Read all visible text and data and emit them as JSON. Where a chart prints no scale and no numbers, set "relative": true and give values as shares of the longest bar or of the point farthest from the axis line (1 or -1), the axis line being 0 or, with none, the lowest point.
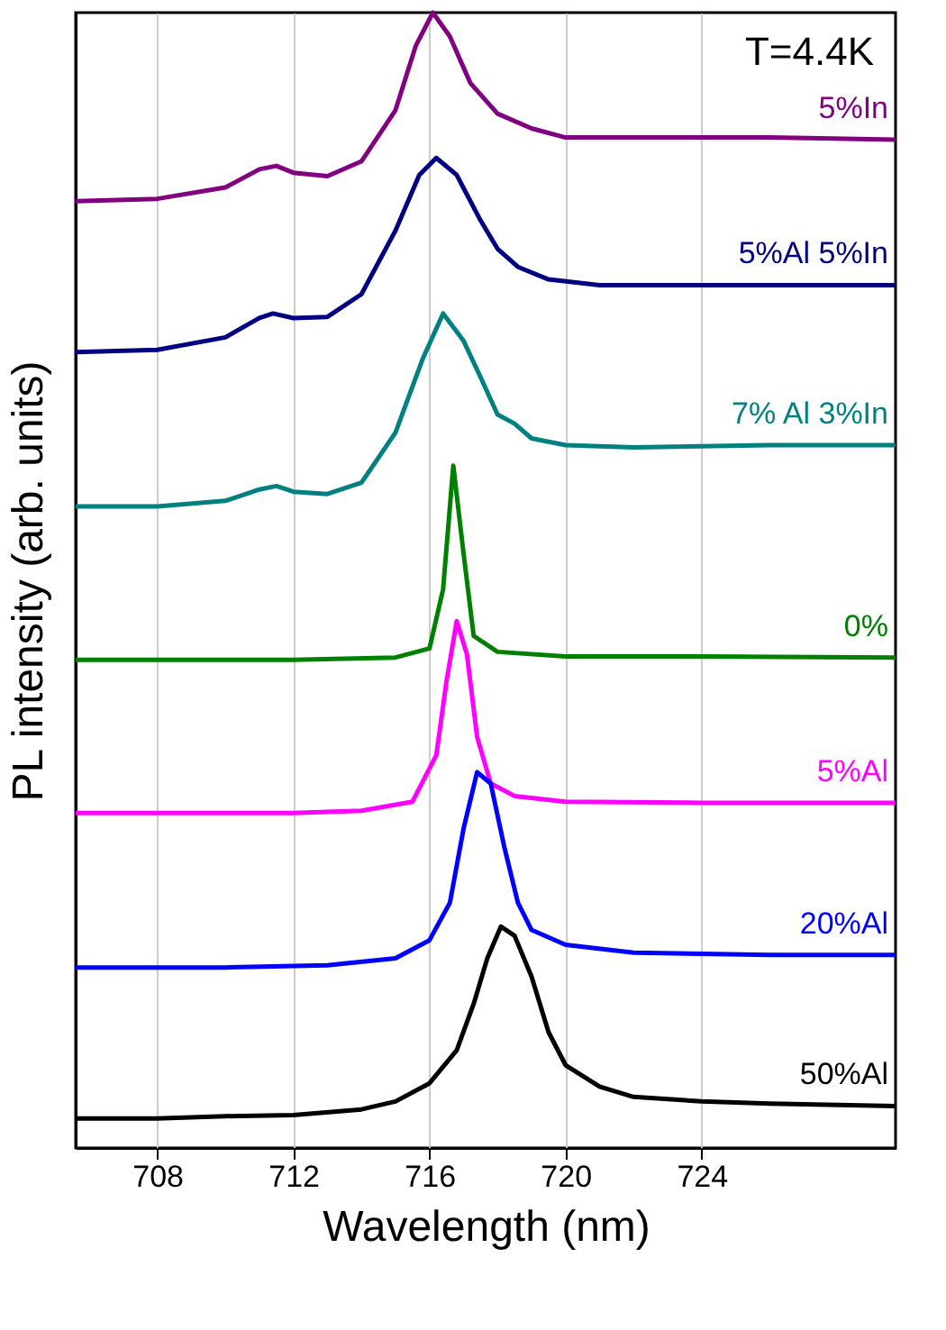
{
  "chart_data": {
    "type": "line",
    "relative": true,
    "xlabel": "Wavelength (nm)",
    "ylabel": "PL intensity (arb. units)",
    "xlim": [
      705.6,
      729.7
    ],
    "xticks": [
      708,
      712,
      716,
      720,
      724
    ],
    "grid": "x",
    "legend": false,
    "marker": "none",
    "line_style": "solid",
    "annotations": [
      "T=4.4K"
    ],
    "series": [
      {
        "name": "5%In",
        "color": "#800080",
        "x": [
          705.6,
          708,
          710,
          711,
          711.5,
          712,
          713,
          714,
          715,
          715.6,
          716.1,
          716.6,
          717.2,
          718,
          719,
          720,
          722,
          726,
          729.7
        ],
        "values": [
          0.834,
          0.836,
          0.846,
          0.862,
          0.865,
          0.859,
          0.856,
          0.869,
          0.914,
          0.971,
          1.0,
          0.979,
          0.938,
          0.911,
          0.898,
          0.89,
          0.89,
          0.89,
          0.888
        ]
      },
      {
        "name": "5%Al 5%In",
        "color": "#000080",
        "x": [
          705.6,
          708,
          710,
          711,
          711.4,
          712,
          713,
          714,
          715,
          715.7,
          716.2,
          716.8,
          717.5,
          718,
          718.6,
          719.5,
          721,
          724,
          729.7
        ],
        "values": [
          0.701,
          0.703,
          0.714,
          0.731,
          0.735,
          0.731,
          0.732,
          0.752,
          0.808,
          0.857,
          0.872,
          0.857,
          0.817,
          0.792,
          0.776,
          0.765,
          0.76,
          0.76,
          0.76
        ]
      },
      {
        "name": "7% Al 3%In",
        "color": "#008080",
        "x": [
          705.6,
          708,
          710,
          711,
          711.5,
          712,
          713,
          714,
          715,
          715.8,
          716.4,
          717,
          717.5,
          718,
          718.5,
          719,
          720,
          722,
          726,
          729.7
        ],
        "values": [
          0.565,
          0.565,
          0.57,
          0.58,
          0.583,
          0.578,
          0.576,
          0.586,
          0.63,
          0.695,
          0.735,
          0.711,
          0.679,
          0.646,
          0.638,
          0.625,
          0.619,
          0.617,
          0.619,
          0.619
        ]
      },
      {
        "name": "0%",
        "color": "#008000",
        "x": [
          705.6,
          712,
          715,
          716,
          716.4,
          716.7,
          717,
          717.3,
          718,
          720,
          724,
          729.7
        ],
        "values": [
          0.43,
          0.43,
          0.432,
          0.44,
          0.492,
          0.601,
          0.524,
          0.451,
          0.437,
          0.433,
          0.433,
          0.432
        ]
      },
      {
        "name": "5%Al",
        "color": "#ff00ff",
        "x": [
          705.6,
          712,
          714,
          715.5,
          716.2,
          716.5,
          716.8,
          717.1,
          717.4,
          717.8,
          718.5,
          720,
          724,
          729.7
        ],
        "values": [
          0.295,
          0.295,
          0.297,
          0.305,
          0.346,
          0.411,
          0.464,
          0.435,
          0.362,
          0.321,
          0.31,
          0.305,
          0.304,
          0.304
        ]
      },
      {
        "name": "20%Al",
        "color": "#0000ff",
        "x": [
          705.6,
          710,
          713,
          715,
          716,
          716.6,
          717,
          717.4,
          717.8,
          718.2,
          718.6,
          719,
          720,
          722,
          726,
          729.7
        ],
        "values": [
          0.159,
          0.159,
          0.161,
          0.167,
          0.183,
          0.216,
          0.281,
          0.331,
          0.321,
          0.265,
          0.216,
          0.192,
          0.179,
          0.172,
          0.17,
          0.17
        ]
      },
      {
        "name": "50%Al",
        "color": "#000000",
        "x": [
          705.6,
          708,
          710,
          712,
          714,
          715,
          716,
          716.8,
          717.3,
          717.7,
          718.1,
          718.5,
          719,
          719.5,
          720,
          721,
          722,
          724,
          726,
          729.7
        ],
        "values": [
          0.026,
          0.026,
          0.028,
          0.029,
          0.034,
          0.041,
          0.057,
          0.086,
          0.127,
          0.167,
          0.195,
          0.187,
          0.151,
          0.102,
          0.073,
          0.054,
          0.045,
          0.041,
          0.039,
          0.037
        ]
      }
    ]
  }
}
